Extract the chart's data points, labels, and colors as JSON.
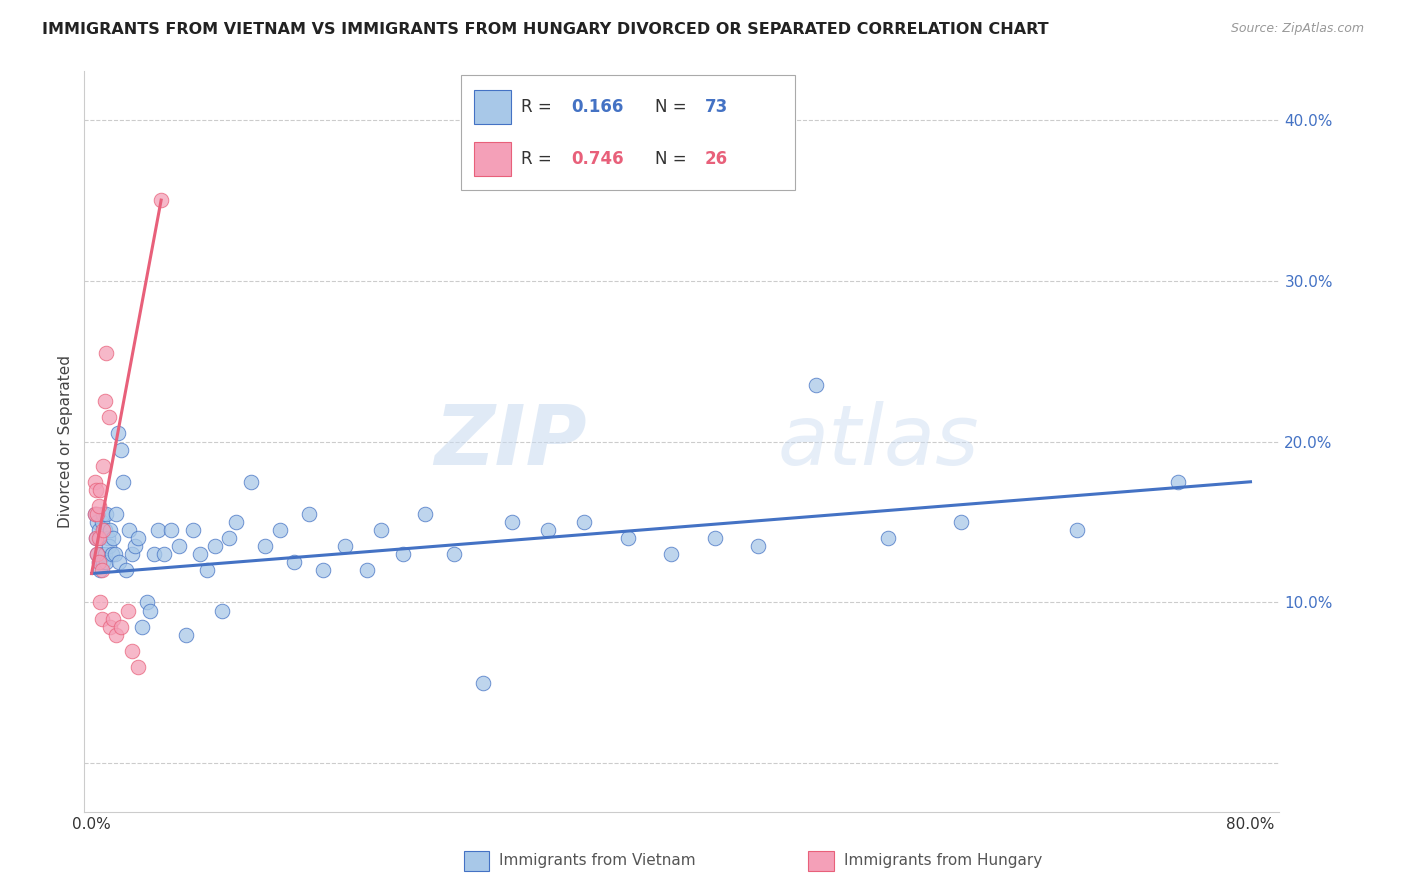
{
  "title": "IMMIGRANTS FROM VIETNAM VS IMMIGRANTS FROM HUNGARY DIVORCED OR SEPARATED CORRELATION CHART",
  "source": "Source: ZipAtlas.com",
  "ylabel": "Divorced or Separated",
  "color_vietnam": "#A8C8E8",
  "color_hungary": "#F4A0B8",
  "line_color_vietnam": "#4472C4",
  "line_color_hungary": "#E8607A",
  "r_vietnam": 0.166,
  "n_vietnam": 73,
  "r_hungary": 0.746,
  "n_hungary": 26,
  "watermark_zip": "ZIP",
  "watermark_atlas": "atlas",
  "xlim": [
    -0.005,
    0.82
  ],
  "ylim": [
    -0.03,
    0.43
  ],
  "y_ticks": [
    0.0,
    0.1,
    0.2,
    0.3,
    0.4
  ],
  "y_tick_labels": [
    "",
    "10.0%",
    "20.0%",
    "30.0%",
    "40.0%"
  ],
  "x_ticks": [
    0.0,
    0.1,
    0.2,
    0.3,
    0.4,
    0.5,
    0.6,
    0.7,
    0.8
  ],
  "legend_r_color": "#4472C4",
  "legend_n_color": "#E8607A",
  "vietnam_x": [
    0.002,
    0.003,
    0.004,
    0.004,
    0.005,
    0.005,
    0.006,
    0.006,
    0.007,
    0.007,
    0.008,
    0.008,
    0.009,
    0.009,
    0.01,
    0.01,
    0.011,
    0.012,
    0.013,
    0.014,
    0.015,
    0.016,
    0.017,
    0.018,
    0.019,
    0.02,
    0.022,
    0.024,
    0.026,
    0.028,
    0.03,
    0.032,
    0.035,
    0.038,
    0.04,
    0.043,
    0.046,
    0.05,
    0.055,
    0.06,
    0.065,
    0.07,
    0.075,
    0.08,
    0.085,
    0.09,
    0.095,
    0.1,
    0.11,
    0.12,
    0.13,
    0.14,
    0.15,
    0.16,
    0.175,
    0.19,
    0.2,
    0.215,
    0.23,
    0.25,
    0.27,
    0.29,
    0.315,
    0.34,
    0.37,
    0.4,
    0.43,
    0.46,
    0.5,
    0.55,
    0.6,
    0.68,
    0.75
  ],
  "vietnam_y": [
    0.155,
    0.14,
    0.15,
    0.13,
    0.145,
    0.125,
    0.14,
    0.12,
    0.15,
    0.13,
    0.155,
    0.125,
    0.145,
    0.13,
    0.155,
    0.125,
    0.14,
    0.135,
    0.145,
    0.13,
    0.14,
    0.13,
    0.155,
    0.205,
    0.125,
    0.195,
    0.175,
    0.12,
    0.145,
    0.13,
    0.135,
    0.14,
    0.085,
    0.1,
    0.095,
    0.13,
    0.145,
    0.13,
    0.145,
    0.135,
    0.08,
    0.145,
    0.13,
    0.12,
    0.135,
    0.095,
    0.14,
    0.15,
    0.175,
    0.135,
    0.145,
    0.125,
    0.155,
    0.12,
    0.135,
    0.12,
    0.145,
    0.13,
    0.155,
    0.13,
    0.05,
    0.15,
    0.145,
    0.15,
    0.14,
    0.13,
    0.14,
    0.135,
    0.235,
    0.14,
    0.15,
    0.145,
    0.175
  ],
  "hungary_x": [
    0.002,
    0.002,
    0.003,
    0.003,
    0.004,
    0.004,
    0.005,
    0.005,
    0.005,
    0.006,
    0.006,
    0.007,
    0.007,
    0.008,
    0.008,
    0.009,
    0.01,
    0.012,
    0.013,
    0.015,
    0.017,
    0.02,
    0.025,
    0.028,
    0.032,
    0.048
  ],
  "hungary_y": [
    0.155,
    0.175,
    0.17,
    0.14,
    0.155,
    0.13,
    0.16,
    0.14,
    0.125,
    0.17,
    0.1,
    0.09,
    0.12,
    0.185,
    0.145,
    0.225,
    0.255,
    0.215,
    0.085,
    0.09,
    0.08,
    0.085,
    0.095,
    0.07,
    0.06,
    0.35
  ],
  "vn_line_x": [
    0.0,
    0.8
  ],
  "vn_line_y": [
    0.118,
    0.175
  ],
  "hu_line_x": [
    0.0,
    0.048
  ],
  "hu_line_y": [
    0.118,
    0.35
  ]
}
